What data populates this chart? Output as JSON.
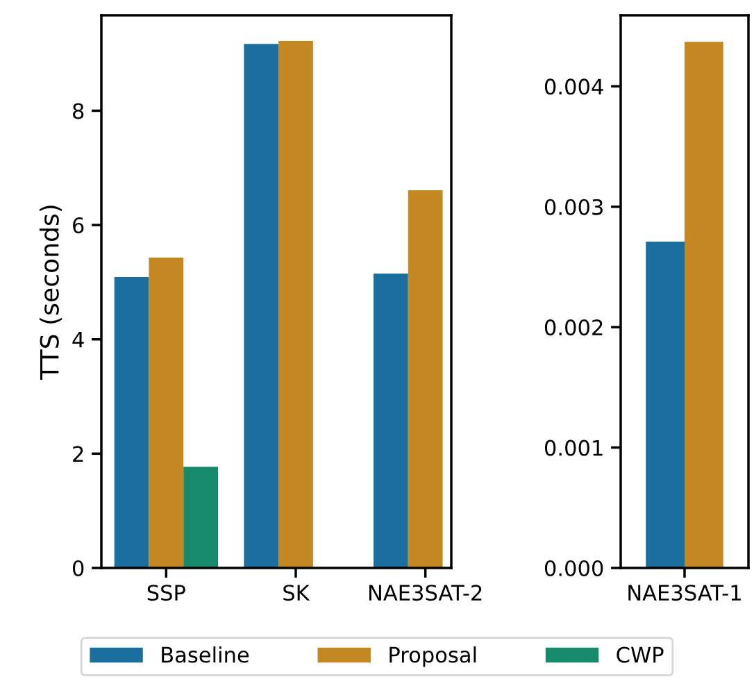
{
  "chart_data": [
    {
      "type": "bar",
      "ylabel": "TTS (seconds)",
      "categories": [
        "SSP",
        "SK",
        "NAE3SAT-2"
      ],
      "series": [
        {
          "name": "Baseline",
          "color": "#1a6f9f",
          "values": [
            5.09,
            9.17,
            5.15
          ]
        },
        {
          "name": "Proposal",
          "color": "#c48822",
          "values": [
            5.43,
            9.22,
            6.61
          ]
        },
        {
          "name": "CWP",
          "color": "#178a6c",
          "values": [
            1.77,
            null,
            null
          ]
        }
      ],
      "ylim": [
        0,
        9.67
      ],
      "yticks": [
        0,
        2,
        4,
        6,
        8
      ],
      "grid": false,
      "legend": "bottom"
    },
    {
      "type": "bar",
      "categories": [
        "NAE3SAT-1"
      ],
      "series": [
        {
          "name": "Baseline",
          "color": "#1a6f9f",
          "values": [
            0.00271
          ]
        },
        {
          "name": "Proposal",
          "color": "#c48822",
          "values": [
            0.00437
          ]
        }
      ],
      "ylim": [
        0,
        0.00459
      ],
      "yticks": [
        {
          "value": 0,
          "label": "0.000"
        },
        {
          "value": 0.001,
          "label": "0.001"
        },
        {
          "value": 0.002,
          "label": "0.002"
        },
        {
          "value": 0.003,
          "label": "0.003"
        },
        {
          "value": 0.004,
          "label": "0.004"
        }
      ],
      "grid": false
    }
  ]
}
